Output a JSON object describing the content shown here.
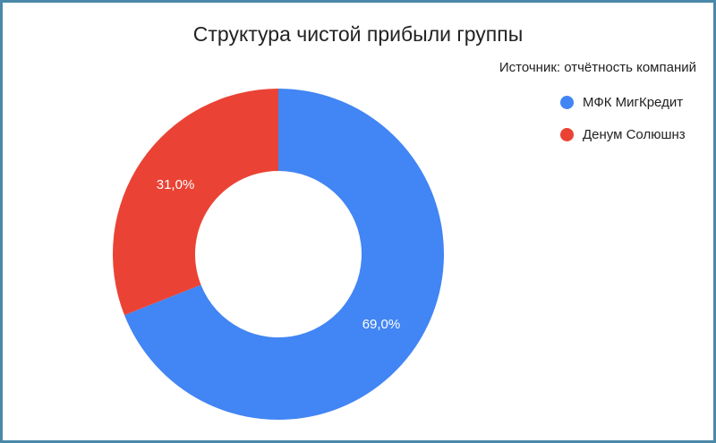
{
  "chart_data": {
    "type": "pie",
    "title": "Структура чистой прибыли группы",
    "subtitle": "Источник: отчётность компаний",
    "legend_position": "right",
    "donut": true,
    "categories": [
      "МФК МигКредит",
      "Денум Солюшнз"
    ],
    "values": [
      69.0,
      31.0
    ],
    "value_labels": [
      "69,0%",
      "31,0%"
    ],
    "colors": [
      "#4285f4",
      "#ea4335"
    ]
  }
}
